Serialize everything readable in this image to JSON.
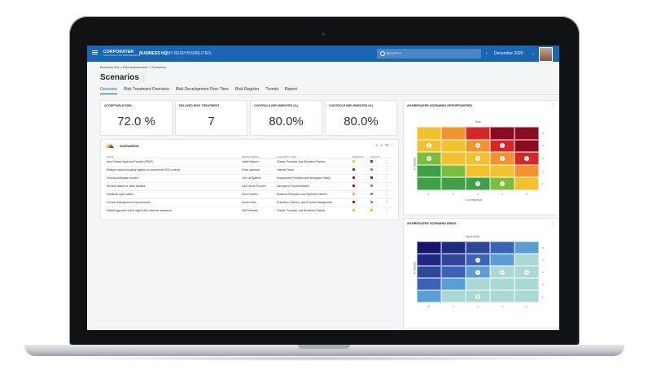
{
  "topbar": {
    "logo": "CORPORATER",
    "logo_sub": "SOLUTIONS FOR PERFORMANCE",
    "nav": [
      "BUSINESS HQ",
      "MY RESPONSIBILITIES"
    ],
    "search_placeholder": "SEARCH",
    "period": "December 2020"
  },
  "breadcrumb": "Business HQ  >  Risk Assessment  >  Scenarios",
  "page": {
    "title": "Scenarios"
  },
  "tabs": [
    "Overview",
    "Risk Treatment Overview",
    "Risk Development Over Time",
    "Risk Register",
    "Trends",
    "Report"
  ],
  "kpis": [
    {
      "label": "ACCEPTABLE RISK",
      "value": "72.0 %"
    },
    {
      "label": "DELAYED RISK TREATMENT",
      "value": "7"
    },
    {
      "label": "CONTROLS IMPLEMENTED (%)",
      "value": "80.0%"
    },
    {
      "label": "CONTROLS IMPLEMENTED (%)",
      "value": "80.0%"
    }
  ],
  "scenarios": {
    "title": "SCENARIOS",
    "columns": [
      "NAME",
      "RESPONSIBLE",
      "SCENARIO TYPE",
      "PRIORITY",
      "STATUS"
    ],
    "rows": [
      {
        "name": "New Product Approval Process (NPAP)",
        "responsible": "Joelle Watson",
        "type": "Clients, Products, and Business Practice",
        "priority": "diamond-amber",
        "status": "red"
      },
      {
        "name": "Multiple incident working together to circumvent SOD controls",
        "responsible": "Emily Jameson",
        "type": "Internal Fraud",
        "priority": "square-red",
        "status": "green"
      },
      {
        "name": "Serious workplace incident",
        "responsible": "Ove Lie Bjalend",
        "type": "Employment Practices and Workplace Safety",
        "priority": "square-red",
        "status": "red"
      },
      {
        "name": "Terrorist attack on office facilities",
        "responsible": "Carl-Henrik Thorsen",
        "type": "Damage to Physical Assets",
        "priority": "square-red",
        "status": "green"
      },
      {
        "name": "Hacktivist cyber attack",
        "responsible": "Erica Holmes",
        "type": "Business Disruption and Systems Failures",
        "priority": "diamond-amber",
        "status": "green"
      },
      {
        "name": "Process Management Improvements",
        "responsible": "David Carlin",
        "type": "Execution, Delivery, and Process Management",
        "priority": "square-red",
        "status": "green"
      },
      {
        "name": "Market approach within higher risk customer segments",
        "responsible": "Ola Pedersen",
        "type": "Clients, Products, and Business Practice",
        "priority": "diamond-amber",
        "status": "diamond-amber"
      }
    ]
  },
  "opportunities": {
    "title": "AGGREGATED SCENARIO OPPORTUNITIES",
    "top_label": "Risk",
    "x_label": "Consequence",
    "y_label": "Probability",
    "x_ticks": [
      "1",
      "2",
      "3",
      "4",
      "5"
    ],
    "y_ticks": [
      "5",
      "4",
      "3",
      "2",
      "1"
    ],
    "colors": [
      [
        "#f2c12e",
        "#f2932e",
        "#d62728",
        "#8b0a1e",
        "#8b0a1e"
      ],
      [
        "#f2c12e",
        "#f2c12e",
        "#f2932e",
        "#d62728",
        "#8b0a1e"
      ],
      [
        "#7cbd3d",
        "#f2c12e",
        "#f2c12e",
        "#f2932e",
        "#d62728"
      ],
      [
        "#3fa046",
        "#7cbd3d",
        "#f2c12e",
        "#f2c12e",
        "#f2932e"
      ],
      [
        "#3fa046",
        "#3fa046",
        "#3fa046",
        "#7cbd3d",
        "#f2c12e"
      ]
    ],
    "counts": [
      [
        "",
        "",
        "",
        "",
        ""
      ],
      [
        "1",
        "",
        "1",
        "1",
        ""
      ],
      [
        "1",
        "",
        "1",
        "1",
        "1"
      ],
      [
        "",
        "",
        "",
        "",
        ""
      ],
      [
        "",
        "",
        "1",
        "1",
        ""
      ]
    ]
  },
  "risks": {
    "title": "AGGREGATED SCENARIO RISKS",
    "top_label": "Opportunity",
    "y_label": "Probability",
    "x_ticks": [
      "5",
      "4",
      "3",
      "2",
      "1"
    ],
    "y_ticks": [
      "5",
      "4",
      "3",
      "2",
      "1"
    ],
    "colors": [
      [
        "#14156e",
        "#1c2a82",
        "#2e4799",
        "#3a62b5",
        "#5a9fd4"
      ],
      [
        "#1c2a82",
        "#2e4799",
        "#3a62b5",
        "#5a9fd4",
        "#a9d9d2"
      ],
      [
        "#2e4799",
        "#3a62b5",
        "#5a9fd4",
        "#a9d9d2",
        "#a9d9d2"
      ],
      [
        "#3a62b5",
        "#5a9fd4",
        "#a9d9d2",
        "#a9d9d2",
        "#a9d9d2"
      ],
      [
        "#5a9fd4",
        "#a9d9d2",
        "#a9d9d2",
        "#a9d9d2",
        "#a9d9d2"
      ]
    ],
    "counts": [
      [
        "",
        "",
        "",
        "",
        ""
      ],
      [
        "",
        "",
        "1",
        "",
        ""
      ],
      [
        "",
        "",
        "1",
        "1",
        "1"
      ],
      [
        "",
        "",
        "",
        "",
        ""
      ],
      [
        "",
        "",
        "1",
        "",
        ""
      ]
    ]
  }
}
